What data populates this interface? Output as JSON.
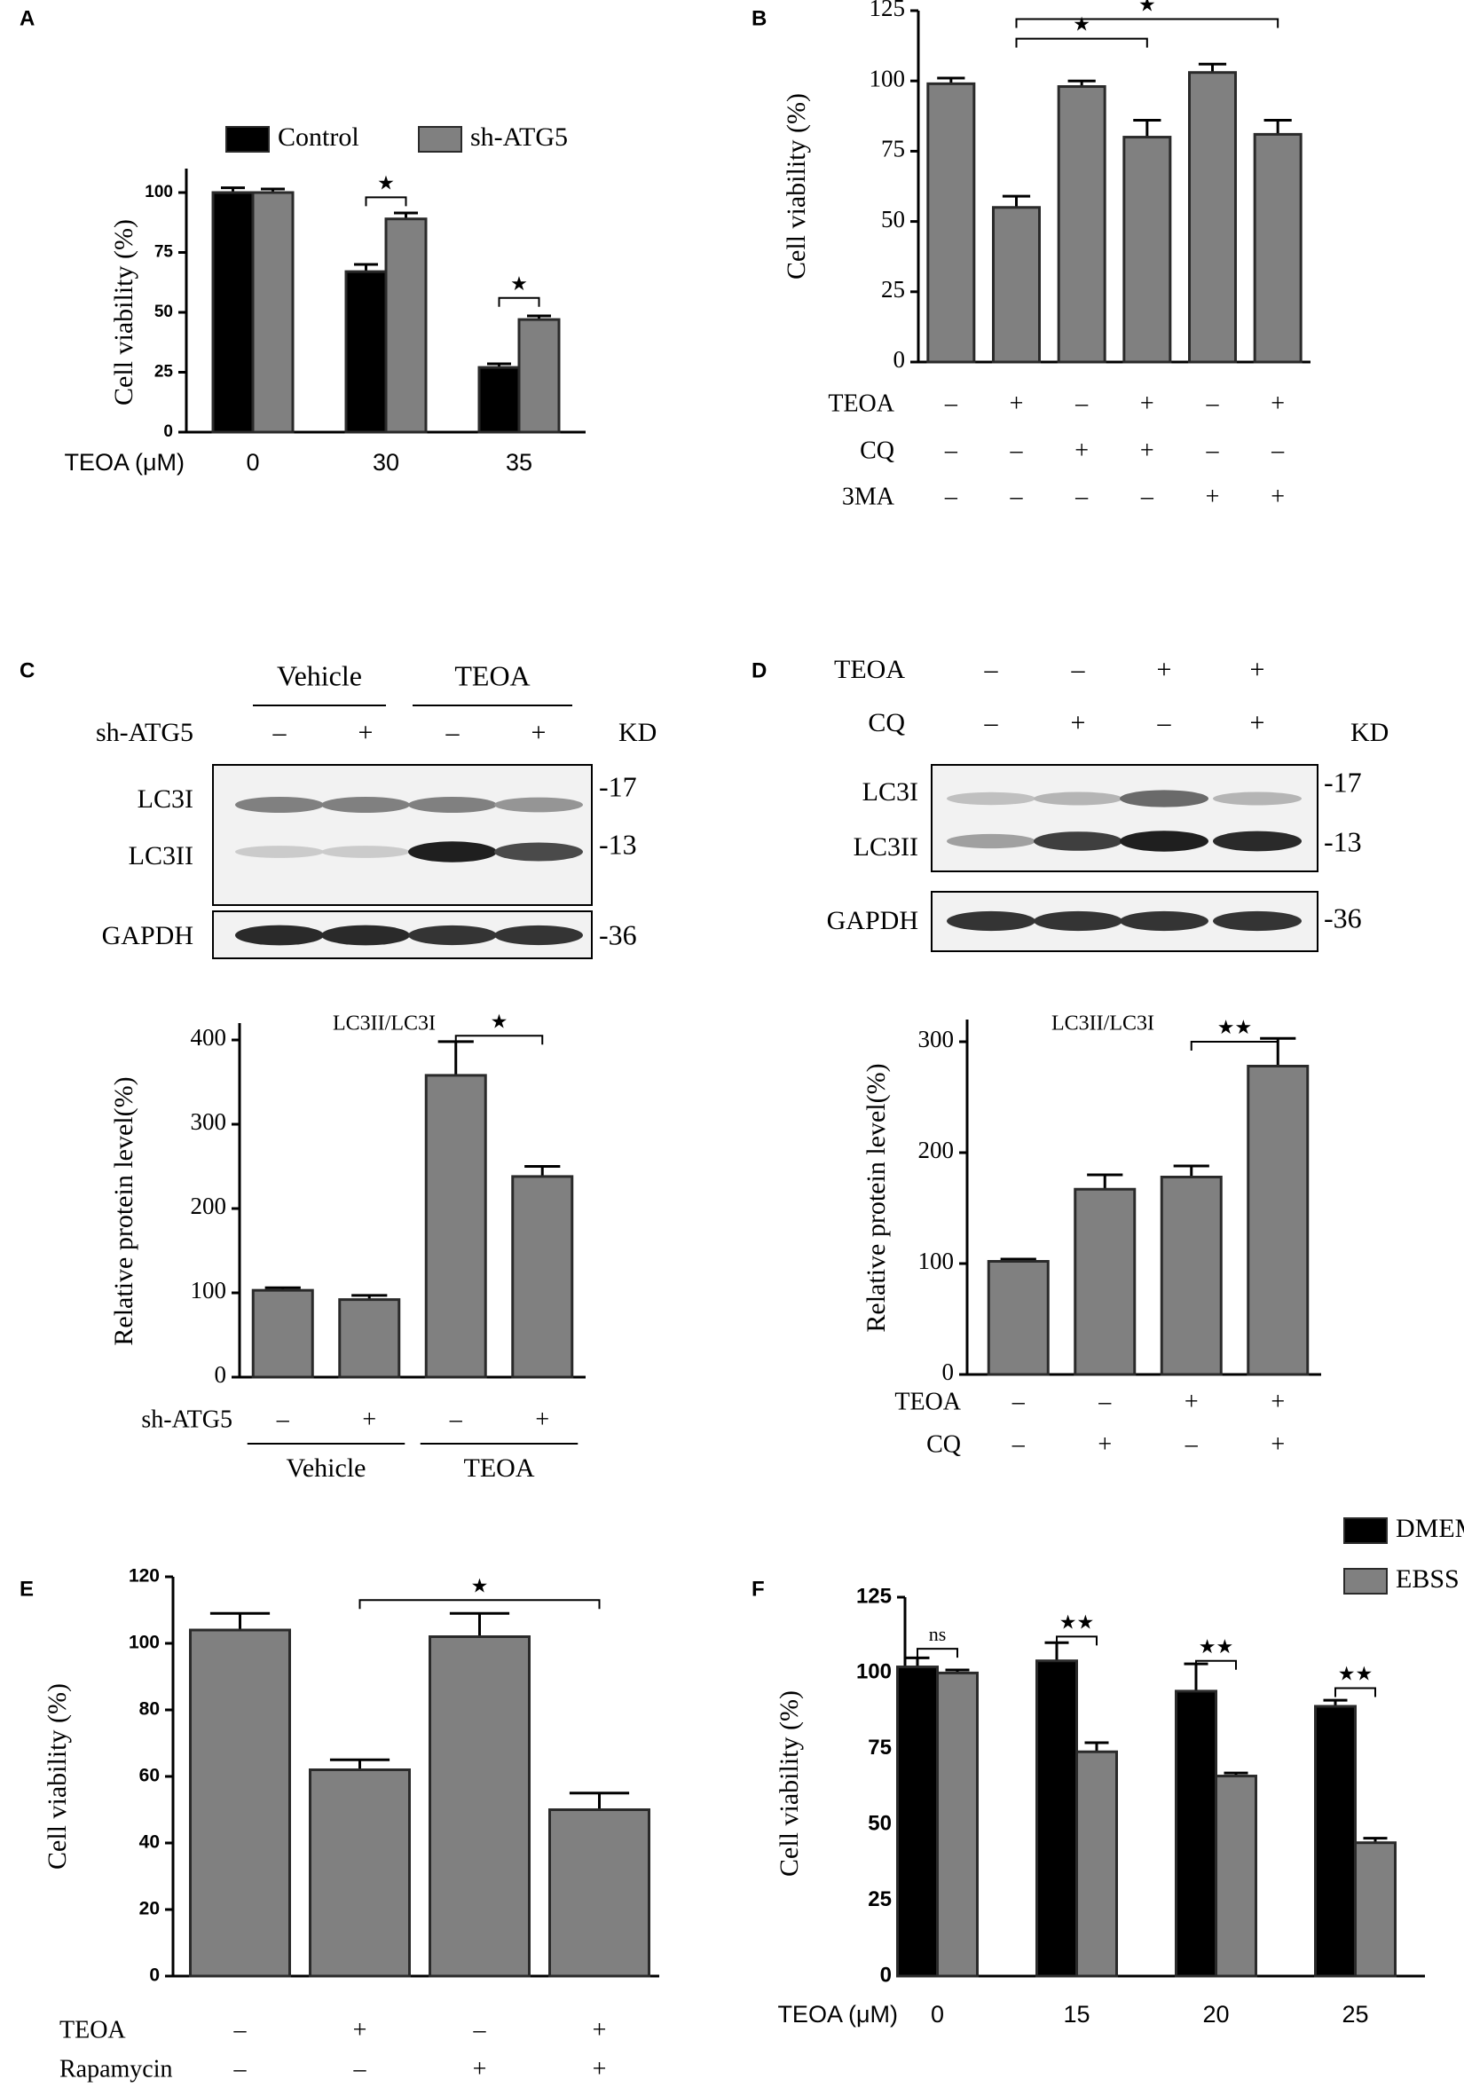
{
  "chart_data": [
    {
      "type": "bar",
      "panel_label": "A",
      "y_label": "Cell viability (%)",
      "x_label": "TEOA (μM)",
      "categories": [
        "0",
        "30",
        "35"
      ],
      "series": [
        {
          "name": "Control",
          "color": "#000000",
          "values": [
            100,
            67,
            27
          ],
          "errors": [
            2,
            3,
            1.5
          ]
        },
        {
          "name": "sh-ATG5",
          "color": "#808080",
          "values": [
            100,
            89,
            47
          ],
          "errors": [
            1.5,
            2.5,
            1.5
          ]
        }
      ],
      "ylim": [
        0,
        110
      ],
      "yticks": [
        0,
        25,
        50,
        75,
        100
      ],
      "annotations": [
        "★",
        "★"
      ]
    },
    {
      "type": "bar",
      "panel_label": "B",
      "y_label": "Cell viability (%)",
      "color": "#808080",
      "values": [
        99,
        55,
        98,
        80,
        103,
        81
      ],
      "errors": [
        2,
        4,
        2,
        6,
        3,
        5
      ],
      "conditions": [
        {
          "name": "TEOA",
          "signs": [
            "–",
            "+",
            "–",
            "+",
            "–",
            "+"
          ]
        },
        {
          "name": "CQ",
          "signs": [
            "–",
            "–",
            "+",
            "+",
            "–",
            "–"
          ]
        },
        {
          "name": "3MA",
          "signs": [
            "–",
            "–",
            "–",
            "–",
            "+",
            "+"
          ]
        }
      ],
      "ylim": [
        0,
        125
      ],
      "yticks": [
        0,
        25,
        50,
        75,
        100,
        125
      ],
      "annotations": [
        "★",
        "★"
      ]
    },
    {
      "type": "bar",
      "panel_label": "C",
      "y_label": "Relative protein level(%)",
      "inset_label": "LC3II/LC3I",
      "color": "#808080",
      "values": [
        103,
        92,
        358,
        238
      ],
      "errors": [
        3,
        5,
        40,
        12
      ],
      "conditions": [
        {
          "name": "sh-ATG5",
          "signs": [
            "–",
            "+",
            "–",
            "+"
          ]
        }
      ],
      "groups": [
        "Vehicle",
        "TEOA"
      ],
      "ylim": [
        0,
        420
      ],
      "yticks": [
        0,
        100,
        200,
        300,
        400
      ],
      "annotations": [
        "★"
      ],
      "blot": {
        "groups": [
          "Vehicle",
          "TEOA"
        ],
        "rows": [
          {
            "name": "sh-ATG5",
            "signs": [
              "–",
              "+",
              "–",
              "+"
            ]
          }
        ],
        "bands": [
          "LC3I",
          "LC3II",
          "GAPDH"
        ],
        "unit": "KD",
        "markers": [
          "-17",
          "-13",
          "-36"
        ]
      }
    },
    {
      "type": "bar",
      "panel_label": "D",
      "y_label": "Relative protein level(%)",
      "inset_label": "LC3II/LC3I",
      "color": "#808080",
      "values": [
        102,
        167,
        178,
        278
      ],
      "errors": [
        2,
        13,
        10,
        25
      ],
      "conditions": [
        {
          "name": "TEOA",
          "signs": [
            "–",
            "–",
            "+",
            "+"
          ]
        },
        {
          "name": "CQ",
          "signs": [
            "–",
            "+",
            "–",
            "+"
          ]
        }
      ],
      "ylim": [
        0,
        320
      ],
      "yticks": [
        0,
        100,
        200,
        300
      ],
      "annotations": [
        "★★"
      ],
      "blot": {
        "rows": [
          {
            "name": "TEOA",
            "signs": [
              "–",
              "–",
              "+",
              "+"
            ]
          },
          {
            "name": "CQ",
            "signs": [
              "–",
              "+",
              "–",
              "+"
            ]
          }
        ],
        "bands": [
          "LC3I",
          "LC3II",
          "GAPDH"
        ],
        "unit": "KD",
        "markers": [
          "-17",
          "-13",
          "-36"
        ]
      }
    },
    {
      "type": "bar",
      "panel_label": "E",
      "y_label": "Cell viability (%)",
      "color": "#808080",
      "values": [
        104,
        62,
        102,
        50
      ],
      "errors": [
        5,
        3,
        7,
        5
      ],
      "conditions": [
        {
          "name": "TEOA",
          "signs": [
            "–",
            "+",
            "–",
            "+"
          ]
        },
        {
          "name": "Rapamycin",
          "signs": [
            "–",
            "–",
            "+",
            "+"
          ]
        }
      ],
      "ylim": [
        0,
        120
      ],
      "yticks": [
        0,
        20,
        40,
        60,
        80,
        100,
        120
      ],
      "annotations": [
        "★"
      ]
    },
    {
      "type": "bar",
      "panel_label": "F",
      "y_label": "Cell viability (%)",
      "x_label": "TEOA (μM)",
      "categories": [
        "0",
        "15",
        "20",
        "25"
      ],
      "series": [
        {
          "name": "DMEM",
          "color": "#000000",
          "values": [
            102,
            104,
            94,
            89
          ],
          "errors": [
            3,
            6,
            9,
            2
          ]
        },
        {
          "name": "EBSS",
          "color": "#808080",
          "values": [
            100,
            74,
            66,
            44
          ],
          "errors": [
            1,
            3,
            1,
            1.5
          ]
        }
      ],
      "ylim": [
        0,
        125
      ],
      "yticks": [
        0,
        25,
        50,
        75,
        100,
        125
      ],
      "annotations": [
        "ns",
        "★★",
        "★★",
        "★★"
      ]
    }
  ]
}
